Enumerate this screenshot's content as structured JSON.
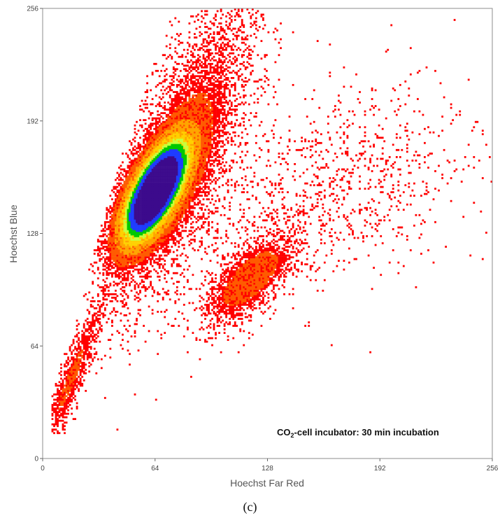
{
  "chart_data": {
    "type": "heatmap",
    "title": "",
    "xlabel": "Hoechst Far Red",
    "ylabel": "Hoechst Blue",
    "xlim": [
      0,
      256
    ],
    "ylim": [
      0,
      256
    ],
    "x_ticks": [
      0,
      64,
      128,
      192,
      256
    ],
    "y_ticks": [
      0,
      64,
      128,
      192,
      256
    ],
    "annotation": {
      "prefix": "CO",
      "subscript": "2",
      "suffix": "-cell incubator: 30 min incubation"
    },
    "caption": "(c)",
    "grid": false,
    "colors": [
      "#ff0000",
      "#ff5a00",
      "#ffa500",
      "#ffd000",
      "#c8ff3c",
      "#00c800",
      "#1e3cff",
      "#3c0a8c"
    ],
    "populations": [
      {
        "center": [
          64,
          152
        ],
        "major_axis_deg": 62,
        "sd_major": 19,
        "sd_minor": 7.5,
        "weight": 0.62
      },
      {
        "center": [
          80,
          175
        ],
        "major_axis_deg": 70,
        "sd_major": 45,
        "sd_minor": 14,
        "weight": 0.22
      },
      {
        "center": [
          118,
          102
        ],
        "major_axis_deg": 45,
        "sd_major": 18,
        "sd_minor": 8,
        "weight": 0.07
      },
      {
        "center": [
          160,
          150
        ],
        "major_axis_deg": 25,
        "sd_major": 48,
        "sd_minor": 26,
        "weight": 0.05
      },
      {
        "center": [
          16,
          45
        ],
        "major_axis_deg": 68,
        "sd_major": 30,
        "sd_minor": 4,
        "weight": 0.04
      }
    ]
  }
}
